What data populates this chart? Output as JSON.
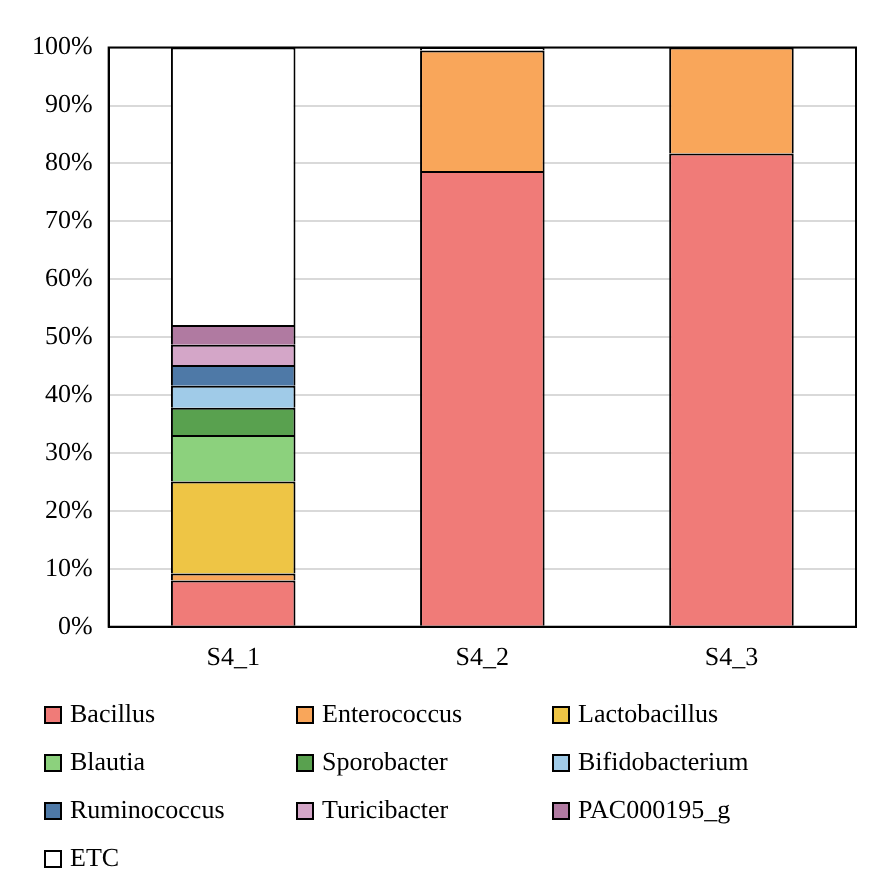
{
  "chart_data": {
    "type": "bar",
    "stacked": true,
    "categories": [
      "S4_1",
      "S4_2",
      "S4_3"
    ],
    "series": [
      {
        "name": "Bacillus",
        "color": "#f07b78",
        "values": [
          8,
          78.7,
          81.7
        ]
      },
      {
        "name": "Enterococcus",
        "color": "#f9a65a",
        "values": [
          1.2,
          20.8,
          18.3
        ]
      },
      {
        "name": "Lactobacillus",
        "color": "#eec545",
        "values": [
          15.9,
          0,
          0
        ]
      },
      {
        "name": "Blautia",
        "color": "#8cd17d",
        "values": [
          8,
          0,
          0
        ]
      },
      {
        "name": "Sporobacter",
        "color": "#59a14f",
        "values": [
          4.7,
          0,
          0
        ]
      },
      {
        "name": "Bifidobacterium",
        "color": "#a0cbe8",
        "values": [
          3.8,
          0,
          0
        ]
      },
      {
        "name": "Ruminococcus",
        "color": "#4e79a7",
        "values": [
          3.6,
          0,
          0
        ]
      },
      {
        "name": "Turicibacter",
        "color": "#d4a6c8",
        "values": [
          3.5,
          0,
          0
        ]
      },
      {
        "name": "PAC000195_g",
        "color": "#b07aa1",
        "values": [
          3.4,
          0,
          0
        ]
      },
      {
        "name": "ETC",
        "color": "#ffffff",
        "values": [
          47.9,
          0.5,
          0
        ]
      }
    ],
    "ylim": [
      0,
      100
    ],
    "yticks": [
      {
        "value": 0,
        "label": "0%"
      },
      {
        "value": 10,
        "label": "10%"
      },
      {
        "value": 20,
        "label": "20%"
      },
      {
        "value": 30,
        "label": "30%"
      },
      {
        "value": 40,
        "label": "40%"
      },
      {
        "value": 50,
        "label": "50%"
      },
      {
        "value": 60,
        "label": "60%"
      },
      {
        "value": 70,
        "label": "70%"
      },
      {
        "value": 80,
        "label": "80%"
      },
      {
        "value": 90,
        "label": "90%"
      },
      {
        "value": 100,
        "label": "100%"
      }
    ],
    "grid": "y",
    "legend": "bottom"
  }
}
